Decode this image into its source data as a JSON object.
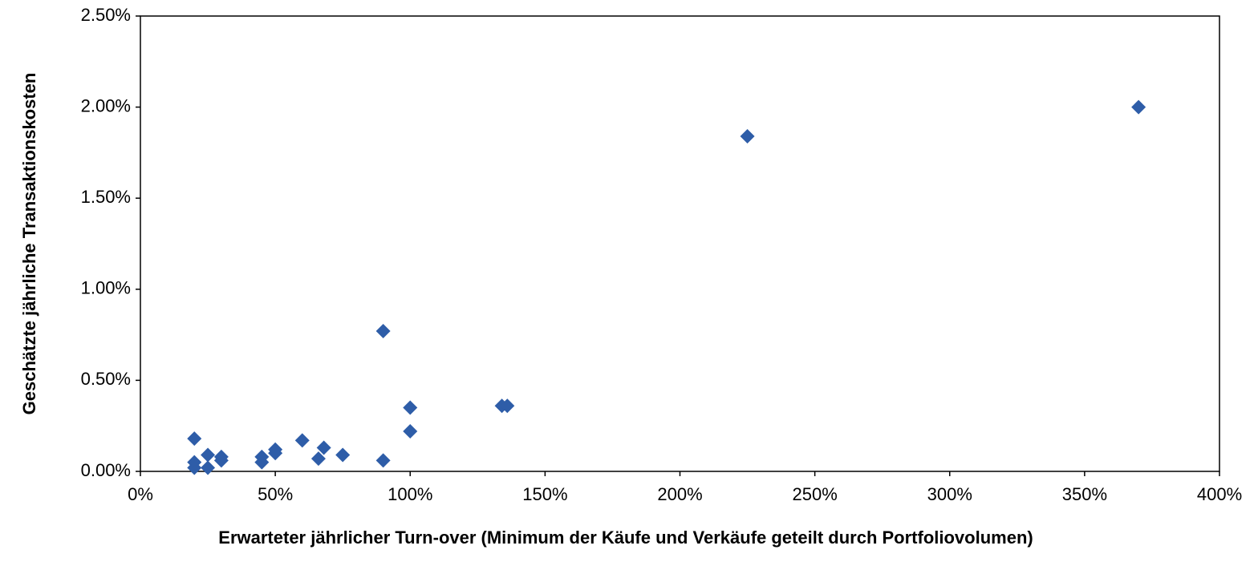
{
  "chart_data": {
    "type": "scatter",
    "x_label": "Erwarteter jährlicher Turn-over (Minimum der Käufe und Verkäufe geteilt durch Portfoliovolumen)",
    "y_label": "Geschätzte jährliche Transaktionskosten",
    "color": "#2E5DA8",
    "xlim": [
      0,
      400
    ],
    "ylim": [
      0,
      2.5
    ],
    "xticks": [
      {
        "value": 0,
        "label": "0%"
      },
      {
        "value": 50,
        "label": "50%"
      },
      {
        "value": 100,
        "label": "100%"
      },
      {
        "value": 150,
        "label": "150%"
      },
      {
        "value": 200,
        "label": "200%"
      },
      {
        "value": 250,
        "label": "250%"
      },
      {
        "value": 300,
        "label": "300%"
      },
      {
        "value": 350,
        "label": "350%"
      },
      {
        "value": 400,
        "label": "400%"
      }
    ],
    "yticks": [
      {
        "value": 0,
        "label": "0.00%"
      },
      {
        "value": 0.5,
        "label": "0.50%"
      },
      {
        "value": 1,
        "label": "1.00%"
      },
      {
        "value": 1.5,
        "label": "1.50%"
      },
      {
        "value": 2,
        "label": "2.00%"
      },
      {
        "value": 2.5,
        "label": "2.50%"
      }
    ],
    "x": [
      20,
      20,
      20,
      25,
      25,
      30,
      30,
      45,
      45,
      50,
      50,
      60,
      66,
      68,
      75,
      90,
      90,
      100,
      100,
      134,
      136,
      225,
      370
    ],
    "values": [
      0.18,
      0.05,
      0.02,
      0.09,
      0.02,
      0.08,
      0.06,
      0.08,
      0.05,
      0.12,
      0.1,
      0.17,
      0.07,
      0.13,
      0.09,
      0.77,
      0.06,
      0.35,
      0.22,
      0.36,
      0.36,
      1.84,
      2.0
    ]
  }
}
